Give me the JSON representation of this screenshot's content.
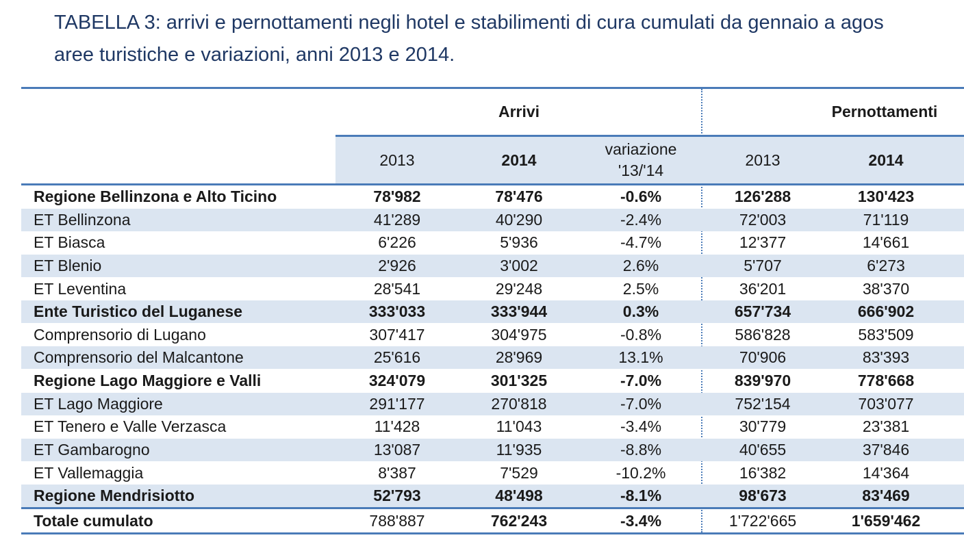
{
  "title": {
    "line1": "TABELLA 3: arrivi e pernottamenti negli hotel e stabilimenti di cura cumulati da gennaio a agos",
    "line2": "aree turistiche e variazioni, anni 2013 e 2014."
  },
  "header": {
    "arrivi": "Arrivi",
    "pernottamenti": "Pernottamenti",
    "sub": {
      "y2013": "2013",
      "y2014": "2014",
      "var1": "variazione",
      "var2": "'13/'14",
      "p2013": "2013",
      "p2014": "2014"
    }
  },
  "rows": [
    {
      "name": "Regione Bellinzona e Alto Ticino",
      "a13": "78'982",
      "a14": "78'476",
      "var": "-0.6%",
      "p13": "126'288",
      "p14": "130'423"
    },
    {
      "name": "ET Bellinzona",
      "a13": "41'289",
      "a14": "40'290",
      "var": "-2.4%",
      "p13": "72'003",
      "p14": "71'119"
    },
    {
      "name": "ET Biasca",
      "a13": "6'226",
      "a14": "5'936",
      "var": "-4.7%",
      "p13": "12'377",
      "p14": "14'661"
    },
    {
      "name": "ET Blenio",
      "a13": "2'926",
      "a14": "3'002",
      "var": "2.6%",
      "p13": "5'707",
      "p14": "6'273"
    },
    {
      "name": "ET Leventina",
      "a13": "28'541",
      "a14": "29'248",
      "var": "2.5%",
      "p13": "36'201",
      "p14": "38'370"
    },
    {
      "name": "Ente Turistico del Luganese",
      "a13": "333'033",
      "a14": "333'944",
      "var": "0.3%",
      "p13": "657'734",
      "p14": "666'902"
    },
    {
      "name": "Comprensorio di Lugano",
      "a13": "307'417",
      "a14": "304'975",
      "var": "-0.8%",
      "p13": "586'828",
      "p14": "583'509"
    },
    {
      "name": "Comprensorio del Malcantone",
      "a13": "25'616",
      "a14": "28'969",
      "var": "13.1%",
      "p13": "70'906",
      "p14": "83'393"
    },
    {
      "name": "Regione Lago Maggiore e Valli",
      "a13": "324'079",
      "a14": "301'325",
      "var": "-7.0%",
      "p13": "839'970",
      "p14": "778'668"
    },
    {
      "name": "ET Lago Maggiore",
      "a13": "291'177",
      "a14": "270'818",
      "var": "-7.0%",
      "p13": "752'154",
      "p14": "703'077"
    },
    {
      "name": "ET Tenero e Valle Verzasca",
      "a13": "11'428",
      "a14": "11'043",
      "var": "-3.4%",
      "p13": "30'779",
      "p14": "23'381"
    },
    {
      "name": "ET Gambarogno",
      "a13": "13'087",
      "a14": "11'935",
      "var": "-8.8%",
      "p13": "40'655",
      "p14": "37'846"
    },
    {
      "name": "ET Vallemaggia",
      "a13": "8'387",
      "a14": "7'529",
      "var": "-10.2%",
      "p13": "16'382",
      "p14": "14'364"
    },
    {
      "name": "Regione Mendrisiotto",
      "a13": "52'793",
      "a14": "48'498",
      "var": "-8.1%",
      "p13": "98'673",
      "p14": "83'469"
    }
  ],
  "total": {
    "name": "Totale cumulato",
    "a13": "788'887",
    "a14": "762'243",
    "var": "-3.4%",
    "p13": "1'722'665",
    "p14": "1'659'462"
  },
  "colors": {
    "accent": "#4a7bb8",
    "shade": "#dbe5f1",
    "title": "#1f3864"
  }
}
